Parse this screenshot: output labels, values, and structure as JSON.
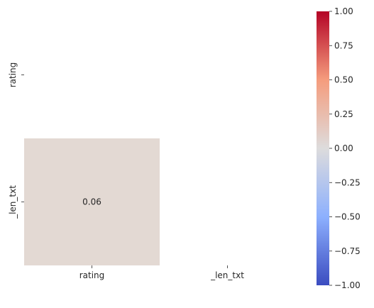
{
  "chart_data": {
    "type": "heatmap",
    "title": "",
    "xlabel": "",
    "ylabel": "",
    "x_categories": [
      "rating",
      "_len_txt"
    ],
    "y_categories": [
      "rating",
      "_len_txt"
    ],
    "mask": "upper-triangle-including-diagonal",
    "cells": [
      {
        "row": 1,
        "col": 0,
        "value": 0.06,
        "label": "0.06"
      }
    ],
    "colormap": "coolwarm",
    "color_range": [
      -1.0,
      1.0
    ],
    "colorbar": {
      "placement": "right",
      "ticks": [
        -1.0,
        -0.75,
        -0.5,
        -0.25,
        0.0,
        0.25,
        0.5,
        0.75,
        1.0
      ],
      "tick_labels": [
        "−1.00",
        "−0.75",
        "−0.50",
        "−0.25",
        "0.00",
        "0.25",
        "0.50",
        "0.75",
        "1.00"
      ]
    },
    "colors": {
      "min": "#3b4cc0",
      "mid": "#dddddd",
      "max": "#b40426",
      "cell_0_06": "#e3d9d3"
    },
    "grid": false
  }
}
